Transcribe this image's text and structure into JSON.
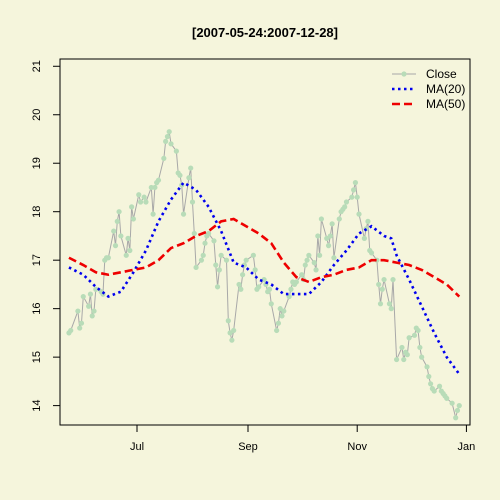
{
  "chart_data": {
    "type": "line",
    "title": "[2007-05-24:2007-12-28]",
    "xlabel": "",
    "ylabel": "",
    "xlim": [
      "2007-05-19",
      "2008-01-03"
    ],
    "ylim": [
      13.6,
      21.15
    ],
    "x_ticks": [
      {
        "date": "2007-07-01",
        "label": "Jul"
      },
      {
        "date": "2007-09-01",
        "label": "Sep"
      },
      {
        "date": "2007-11-01",
        "label": "Nov"
      },
      {
        "date": "2008-01-01",
        "label": "Jan"
      }
    ],
    "y_ticks": [
      14,
      15,
      16,
      17,
      18,
      19,
      20,
      21
    ],
    "grid": false,
    "legend_position": "top-right",
    "series": [
      {
        "name": "Close",
        "style": "line-points",
        "color": "#b8dcb8",
        "line_color": "#a8a8a8",
        "points": [
          [
            "2007-05-24",
            15.5
          ],
          [
            "2007-05-25",
            15.55
          ],
          [
            "2007-05-29",
            15.95
          ],
          [
            "2007-05-30",
            15.6
          ],
          [
            "2007-05-31",
            15.7
          ],
          [
            "2007-06-01",
            16.25
          ],
          [
            "2007-06-04",
            16.05
          ],
          [
            "2007-06-05",
            16.3
          ],
          [
            "2007-06-06",
            15.85
          ],
          [
            "2007-06-07",
            15.95
          ],
          [
            "2007-06-08",
            16.4
          ],
          [
            "2007-06-11",
            16.35
          ],
          [
            "2007-06-12",
            16.3
          ],
          [
            "2007-06-13",
            17.0
          ],
          [
            "2007-06-14",
            17.05
          ],
          [
            "2007-06-15",
            17.05
          ],
          [
            "2007-06-18",
            17.6
          ],
          [
            "2007-06-19",
            17.3
          ],
          [
            "2007-06-20",
            17.8
          ],
          [
            "2007-06-21",
            18.0
          ],
          [
            "2007-06-22",
            17.5
          ],
          [
            "2007-06-25",
            17.1
          ],
          [
            "2007-06-26",
            17.45
          ],
          [
            "2007-06-27",
            17.2
          ],
          [
            "2007-06-28",
            18.1
          ],
          [
            "2007-06-29",
            17.85
          ],
          [
            "2007-07-02",
            18.35
          ],
          [
            "2007-07-03",
            18.2
          ],
          [
            "2007-07-05",
            18.3
          ],
          [
            "2007-07-06",
            18.2
          ],
          [
            "2007-07-09",
            18.5
          ],
          [
            "2007-07-10",
            17.95
          ],
          [
            "2007-07-11",
            18.5
          ],
          [
            "2007-07-12",
            18.6
          ],
          [
            "2007-07-13",
            18.65
          ],
          [
            "2007-07-16",
            19.1
          ],
          [
            "2007-07-17",
            19.45
          ],
          [
            "2007-07-18",
            19.55
          ],
          [
            "2007-07-19",
            19.65
          ],
          [
            "2007-07-20",
            19.4
          ],
          [
            "2007-07-23",
            19.25
          ],
          [
            "2007-07-24",
            18.8
          ],
          [
            "2007-07-25",
            18.75
          ],
          [
            "2007-07-26",
            18.55
          ],
          [
            "2007-07-27",
            17.95
          ],
          [
            "2007-07-30",
            18.7
          ],
          [
            "2007-07-31",
            18.9
          ],
          [
            "2007-08-01",
            18.2
          ],
          [
            "2007-08-02",
            17.55
          ],
          [
            "2007-08-03",
            16.85
          ],
          [
            "2007-08-06",
            17.0
          ],
          [
            "2007-08-07",
            17.1
          ],
          [
            "2007-08-08",
            17.35
          ],
          [
            "2007-08-09",
            17.5
          ],
          [
            "2007-08-10",
            17.55
          ],
          [
            "2007-08-13",
            17.4
          ],
          [
            "2007-08-14",
            16.9
          ],
          [
            "2007-08-15",
            16.45
          ],
          [
            "2007-08-16",
            16.8
          ],
          [
            "2007-08-17",
            17.1
          ],
          [
            "2007-08-20",
            17.0
          ],
          [
            "2007-08-21",
            15.75
          ],
          [
            "2007-08-22",
            15.5
          ],
          [
            "2007-08-23",
            15.35
          ],
          [
            "2007-08-24",
            15.55
          ],
          [
            "2007-08-27",
            16.5
          ],
          [
            "2007-08-28",
            16.4
          ],
          [
            "2007-08-29",
            16.7
          ],
          [
            "2007-08-30",
            16.9
          ],
          [
            "2007-08-31",
            17.0
          ],
          [
            "2007-09-04",
            17.1
          ],
          [
            "2007-09-05",
            16.8
          ],
          [
            "2007-09-06",
            16.4
          ],
          [
            "2007-09-07",
            16.45
          ],
          [
            "2007-09-10",
            16.6
          ],
          [
            "2007-09-11",
            16.5
          ],
          [
            "2007-09-12",
            16.35
          ],
          [
            "2007-09-13",
            16.4
          ],
          [
            "2007-09-14",
            16.1
          ],
          [
            "2007-09-17",
            15.55
          ],
          [
            "2007-09-18",
            15.7
          ],
          [
            "2007-09-19",
            16.0
          ],
          [
            "2007-09-20",
            15.85
          ],
          [
            "2007-09-21",
            15.95
          ],
          [
            "2007-09-24",
            16.25
          ],
          [
            "2007-09-25",
            16.4
          ],
          [
            "2007-09-26",
            16.55
          ],
          [
            "2007-09-27",
            16.5
          ],
          [
            "2007-09-28",
            16.55
          ],
          [
            "2007-10-01",
            16.7
          ],
          [
            "2007-10-02",
            16.6
          ],
          [
            "2007-10-03",
            16.9
          ],
          [
            "2007-10-04",
            17.0
          ],
          [
            "2007-10-05",
            17.1
          ],
          [
            "2007-10-08",
            16.95
          ],
          [
            "2007-10-09",
            16.8
          ],
          [
            "2007-10-10",
            17.5
          ],
          [
            "2007-10-11",
            17.1
          ],
          [
            "2007-10-12",
            17.85
          ],
          [
            "2007-10-15",
            17.45
          ],
          [
            "2007-10-16",
            17.3
          ],
          [
            "2007-10-17",
            17.5
          ],
          [
            "2007-10-18",
            17.75
          ],
          [
            "2007-10-19",
            17.05
          ],
          [
            "2007-10-22",
            17.85
          ],
          [
            "2007-10-23",
            18.0
          ],
          [
            "2007-10-24",
            18.05
          ],
          [
            "2007-10-25",
            18.1
          ],
          [
            "2007-10-26",
            18.2
          ],
          [
            "2007-10-29",
            18.3
          ],
          [
            "2007-10-30",
            18.45
          ],
          [
            "2007-10-31",
            18.6
          ],
          [
            "2007-11-01",
            18.3
          ],
          [
            "2007-11-02",
            17.95
          ],
          [
            "2007-11-05",
            17.45
          ],
          [
            "2007-11-06",
            17.65
          ],
          [
            "2007-11-07",
            17.8
          ],
          [
            "2007-11-08",
            17.2
          ],
          [
            "2007-11-09",
            17.15
          ],
          [
            "2007-11-12",
            17.0
          ],
          [
            "2007-11-13",
            16.5
          ],
          [
            "2007-11-14",
            16.1
          ],
          [
            "2007-11-15",
            16.4
          ],
          [
            "2007-11-16",
            16.6
          ],
          [
            "2007-11-19",
            16.1
          ],
          [
            "2007-11-20",
            16.0
          ],
          [
            "2007-11-21",
            16.6
          ],
          [
            "2007-11-23",
            14.95
          ],
          [
            "2007-11-26",
            15.2
          ],
          [
            "2007-11-27",
            14.95
          ],
          [
            "2007-11-28",
            15.1
          ],
          [
            "2007-11-29",
            15.05
          ],
          [
            "2007-11-30",
            15.4
          ],
          [
            "2007-12-03",
            15.45
          ],
          [
            "2007-12-04",
            15.6
          ],
          [
            "2007-12-05",
            15.55
          ],
          [
            "2007-12-06",
            15.2
          ],
          [
            "2007-12-07",
            15.0
          ],
          [
            "2007-12-10",
            14.8
          ],
          [
            "2007-12-11",
            14.6
          ],
          [
            "2007-12-12",
            14.45
          ],
          [
            "2007-12-13",
            14.35
          ],
          [
            "2007-12-14",
            14.3
          ],
          [
            "2007-12-17",
            14.4
          ],
          [
            "2007-12-18",
            14.3
          ],
          [
            "2007-12-19",
            14.25
          ],
          [
            "2007-12-20",
            14.2
          ],
          [
            "2007-12-21",
            14.15
          ],
          [
            "2007-12-24",
            14.05
          ],
          [
            "2007-12-26",
            13.75
          ],
          [
            "2007-12-27",
            13.9
          ],
          [
            "2007-12-28",
            14.0
          ]
        ]
      },
      {
        "name": "MA(20)",
        "style": "dotted",
        "color": "#0000ee",
        "points": [
          [
            "2007-05-24",
            16.85
          ],
          [
            "2007-06-01",
            16.7
          ],
          [
            "2007-06-08",
            16.45
          ],
          [
            "2007-06-15",
            16.25
          ],
          [
            "2007-06-22",
            16.35
          ],
          [
            "2007-06-29",
            16.75
          ],
          [
            "2007-07-06",
            17.2
          ],
          [
            "2007-07-13",
            17.8
          ],
          [
            "2007-07-20",
            18.25
          ],
          [
            "2007-07-27",
            18.6
          ],
          [
            "2007-08-03",
            18.45
          ],
          [
            "2007-08-10",
            18.1
          ],
          [
            "2007-08-17",
            17.6
          ],
          [
            "2007-08-24",
            16.95
          ],
          [
            "2007-08-31",
            16.85
          ],
          [
            "2007-09-07",
            16.6
          ],
          [
            "2007-09-14",
            16.5
          ],
          [
            "2007-09-21",
            16.3
          ],
          [
            "2007-09-28",
            16.3
          ],
          [
            "2007-10-05",
            16.3
          ],
          [
            "2007-10-12",
            16.55
          ],
          [
            "2007-10-19",
            16.9
          ],
          [
            "2007-10-26",
            17.2
          ],
          [
            "2007-11-02",
            17.55
          ],
          [
            "2007-11-09",
            17.7
          ],
          [
            "2007-11-16",
            17.5
          ],
          [
            "2007-11-20",
            17.45
          ],
          [
            "2007-11-23",
            17.1
          ],
          [
            "2007-11-30",
            16.6
          ],
          [
            "2007-12-07",
            16.05
          ],
          [
            "2007-12-14",
            15.5
          ],
          [
            "2007-12-21",
            15.0
          ],
          [
            "2007-12-28",
            14.65
          ]
        ]
      },
      {
        "name": "MA(50)",
        "style": "dashed",
        "color": "#ee0000",
        "points": [
          [
            "2007-05-24",
            17.05
          ],
          [
            "2007-06-01",
            16.9
          ],
          [
            "2007-06-08",
            16.75
          ],
          [
            "2007-06-15",
            16.7
          ],
          [
            "2007-06-22",
            16.75
          ],
          [
            "2007-06-29",
            16.8
          ],
          [
            "2007-07-06",
            16.85
          ],
          [
            "2007-07-13",
            17.0
          ],
          [
            "2007-07-20",
            17.25
          ],
          [
            "2007-07-27",
            17.35
          ],
          [
            "2007-08-03",
            17.5
          ],
          [
            "2007-08-10",
            17.6
          ],
          [
            "2007-08-17",
            17.8
          ],
          [
            "2007-08-24",
            17.85
          ],
          [
            "2007-08-31",
            17.7
          ],
          [
            "2007-09-07",
            17.55
          ],
          [
            "2007-09-14",
            17.35
          ],
          [
            "2007-09-21",
            16.95
          ],
          [
            "2007-09-28",
            16.65
          ],
          [
            "2007-10-05",
            16.55
          ],
          [
            "2007-10-12",
            16.65
          ],
          [
            "2007-10-19",
            16.7
          ],
          [
            "2007-10-26",
            16.8
          ],
          [
            "2007-11-02",
            16.85
          ],
          [
            "2007-11-09",
            17.0
          ],
          [
            "2007-11-16",
            17.0
          ],
          [
            "2007-11-23",
            16.95
          ],
          [
            "2007-11-30",
            16.9
          ],
          [
            "2007-12-07",
            16.8
          ],
          [
            "2007-12-14",
            16.65
          ],
          [
            "2007-12-21",
            16.5
          ],
          [
            "2007-12-28",
            16.25
          ]
        ]
      }
    ]
  }
}
